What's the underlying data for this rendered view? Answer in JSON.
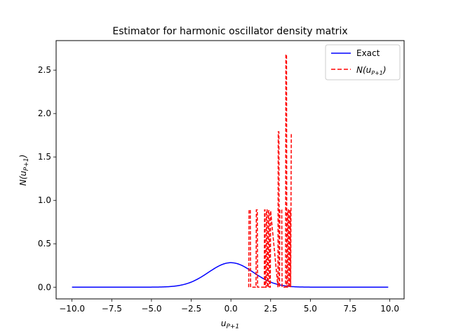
{
  "chart_data": {
    "type": "line",
    "title": "Estimator for harmonic oscillator density matrix",
    "xlabel": "u_{P+1}",
    "ylabel": "N(u_{P+1})",
    "xlim": [
      -11.0,
      10.9
    ],
    "ylim": [
      -0.135,
      2.84
    ],
    "x_ticks": [
      -10.0,
      -7.5,
      -5.0,
      -2.5,
      0.0,
      2.5,
      5.0,
      7.5,
      10.0
    ],
    "x_tick_labels": [
      "−10.0",
      "−7.5",
      "−5.0",
      "−2.5",
      "0.0",
      "2.5",
      "5.0",
      "7.5",
      "10.0"
    ],
    "y_ticks": [
      0.0,
      0.5,
      1.0,
      1.5,
      2.0,
      2.5
    ],
    "y_tick_labels": [
      "0.0",
      "0.5",
      "1.0",
      "1.5",
      "2.0",
      "2.5"
    ],
    "grid": false,
    "legend_position": "top-right",
    "series": [
      {
        "name": "Exact",
        "style": "solid",
        "color": "#0000ff",
        "function": "gaussian",
        "x_range": [
          -10.0,
          9.9
        ],
        "mean": 0.0,
        "peak": 0.282,
        "sigma": 1.41
      },
      {
        "name": "N(u_{P+1})",
        "style": "dashed",
        "color": "#ff0000",
        "x": [
          1.12,
          1.14,
          1.22,
          1.24,
          1.58,
          1.6,
          1.66,
          1.68,
          2.1,
          2.12,
          2.15,
          2.17,
          2.22,
          2.24,
          2.28,
          2.3,
          2.35,
          2.37,
          2.41,
          2.43,
          2.48,
          2.5,
          2.96,
          2.98,
          3.02,
          3.04,
          3.06,
          3.08,
          3.2,
          3.22,
          3.44,
          3.46,
          3.5,
          3.52,
          3.56,
          3.58,
          3.62,
          3.64,
          3.68,
          3.7,
          3.74,
          3.76,
          3.8
        ],
        "y": [
          0.0,
          0.89,
          0.89,
          0.0,
          0.0,
          0.89,
          0.89,
          0.0,
          0.0,
          0.89,
          0.89,
          0.0,
          0.0,
          0.89,
          0.89,
          0.0,
          0.0,
          0.88,
          0.88,
          0.0,
          0.0,
          0.88,
          0.0,
          1.79,
          1.79,
          0.0,
          0.0,
          0.89,
          0.89,
          0.0,
          0.0,
          2.68,
          2.68,
          0.0,
          0.0,
          0.89,
          0.89,
          0.0,
          0.0,
          0.89,
          0.89,
          0.0,
          1.77
        ]
      }
    ],
    "legend": [
      {
        "label": "Exact",
        "style": "solid",
        "color": "#0000ff"
      },
      {
        "label": "N(u_{P+1})",
        "style": "dashed",
        "color": "#ff0000"
      }
    ]
  }
}
